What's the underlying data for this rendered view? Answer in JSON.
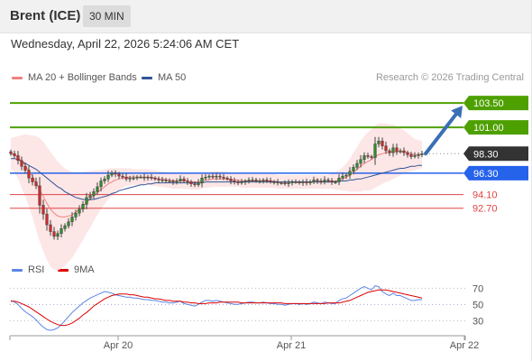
{
  "header": {
    "symbol": "Brent (ICE)",
    "timeframe": "30 MIN"
  },
  "datetime": "Wednesday, April 22, 2026 5:24:06 AM CET",
  "credit": "Research © 2026 Trading Central",
  "colors": {
    "resistance": "#4ea000",
    "pivot": "#2563eb",
    "support": "#e04343",
    "last": "#333333",
    "arrow": "#3a6fb5",
    "ma20": "#f08080",
    "ma50": "#2f5597",
    "bollinger": "#fde3e3",
    "rsi": "#5b86e5",
    "rsi_ma": "#dd0000"
  },
  "chart_data": [
    {
      "type": "candlestick",
      "legend": [
        {
          "name": "MA 20 + Bollinger Bands",
          "color": "#f08080"
        },
        {
          "name": "MA 50",
          "color": "#2f5597"
        }
      ],
      "ylim": [
        88.5,
        105.0
      ],
      "levels": [
        {
          "label": "103.50",
          "value": 103.5,
          "kind": "resistance"
        },
        {
          "label": "101.00",
          "value": 101.0,
          "kind": "resistance"
        },
        {
          "label": "98.30",
          "value": 98.3,
          "kind": "last"
        },
        {
          "label": "96.30",
          "value": 96.3,
          "kind": "pivot"
        },
        {
          "label": "94.10",
          "value": 94.1,
          "kind": "support"
        },
        {
          "label": "92.70",
          "value": 92.7,
          "kind": "support"
        }
      ],
      "x_ticks": [
        {
          "label": "Apr 20",
          "index": 27
        },
        {
          "label": "Apr 21",
          "index": 75
        },
        {
          "label": "Apr 22",
          "index": 123
        }
      ],
      "forecast_arrow": {
        "from": 98.3,
        "to": 103.5
      },
      "closes": [
        98.3,
        98.1,
        97.6,
        97.0,
        96.6,
        95.8,
        95.4,
        95.0,
        93.0,
        92.1,
        91.0,
        90.3,
        89.8,
        90.1,
        90.6,
        90.9,
        91.3,
        91.8,
        92.2,
        92.6,
        93.1,
        93.8,
        94.0,
        94.4,
        94.9,
        95.5,
        95.7,
        96.1,
        96.3,
        96.2,
        96.0,
        95.9,
        95.7,
        95.8,
        95.8,
        95.9,
        95.9,
        95.8,
        95.9,
        95.8,
        95.7,
        95.6,
        95.6,
        95.5,
        95.5,
        95.4,
        95.5,
        95.7,
        95.5,
        95.4,
        95.2,
        95.1,
        95.3,
        95.8,
        95.9,
        96.0,
        95.9,
        96.0,
        95.9,
        95.8,
        95.7,
        95.5,
        95.4,
        95.3,
        95.4,
        95.5,
        95.6,
        95.6,
        95.5,
        95.5,
        95.6,
        95.5,
        95.4,
        95.4,
        95.3,
        95.3,
        95.2,
        95.3,
        95.4,
        95.4,
        95.3,
        95.4,
        95.3,
        95.4,
        95.6,
        95.5,
        95.4,
        95.6,
        95.5,
        95.4,
        95.4,
        95.8,
        96.0,
        96.1,
        96.5,
        96.9,
        97.3,
        97.7,
        98.1,
        98.0,
        97.9,
        99.3,
        99.6,
        99.1,
        98.6,
        98.4,
        98.9,
        98.5,
        98.6,
        98.4,
        98.2,
        98.0,
        98.1,
        98.2,
        98.3
      ],
      "ma20": [
        98.3,
        98.2,
        97.9,
        97.5,
        97.1,
        96.5,
        96.0,
        95.3,
        94.6,
        93.9,
        93.2,
        92.6,
        92.2,
        91.9,
        91.8,
        91.8,
        91.9,
        92.0,
        92.3,
        92.6,
        92.9,
        93.3,
        93.6,
        94.0,
        94.3,
        94.6,
        94.9,
        95.2,
        95.4,
        95.6,
        95.7,
        95.8,
        95.9,
        95.9,
        95.9,
        95.9,
        95.9,
        95.9,
        95.9,
        95.8,
        95.8,
        95.7,
        95.7,
        95.6,
        95.6,
        95.5,
        95.5,
        95.5,
        95.5,
        95.5,
        95.4,
        95.4,
        95.4,
        95.5,
        95.6,
        95.6,
        95.7,
        95.7,
        95.7,
        95.7,
        95.7,
        95.6,
        95.6,
        95.6,
        95.5,
        95.5,
        95.5,
        95.5,
        95.5,
        95.5,
        95.5,
        95.5,
        95.5,
        95.5,
        95.4,
        95.4,
        95.4,
        95.4,
        95.4,
        95.4,
        95.4,
        95.4,
        95.4,
        95.4,
        95.4,
        95.4,
        95.4,
        95.4,
        95.4,
        95.5,
        95.5,
        95.6,
        95.7,
        95.9,
        96.1,
        96.4,
        96.7,
        97.0,
        97.3,
        97.5,
        97.7,
        98.0,
        98.2,
        98.3,
        98.4,
        98.4,
        98.5,
        98.5,
        98.5,
        98.5,
        98.4,
        98.3,
        98.2,
        98.2,
        98.2
      ],
      "ma50": [
        97.8,
        97.8,
        97.7,
        97.5,
        97.3,
        97.1,
        96.9,
        96.7,
        96.4,
        96.1,
        95.8,
        95.5,
        95.2,
        94.9,
        94.7,
        94.4,
        94.2,
        94.0,
        93.8,
        93.7,
        93.6,
        93.6,
        93.6,
        93.6,
        93.7,
        93.8,
        93.9,
        94.0,
        94.2,
        94.3,
        94.5,
        94.6,
        94.7,
        94.8,
        94.9,
        95.0,
        95.1,
        95.1,
        95.2,
        95.2,
        95.3,
        95.3,
        95.3,
        95.3,
        95.3,
        95.3,
        95.3,
        95.3,
        95.3,
        95.3,
        95.3,
        95.3,
        95.3,
        95.3,
        95.4,
        95.4,
        95.4,
        95.4,
        95.4,
        95.4,
        95.4,
        95.4,
        95.4,
        95.4,
        95.4,
        95.4,
        95.4,
        95.4,
        95.4,
        95.4,
        95.4,
        95.4,
        95.4,
        95.4,
        95.4,
        95.4,
        95.4,
        95.4,
        95.4,
        95.4,
        95.4,
        95.4,
        95.4,
        95.4,
        95.4,
        95.4,
        95.4,
        95.4,
        95.4,
        95.4,
        95.4,
        95.5,
        95.5,
        95.5,
        95.6,
        95.6,
        95.7,
        95.7,
        95.8,
        95.9,
        96.0,
        96.1,
        96.2,
        96.3,
        96.4,
        96.5,
        96.6,
        96.7,
        96.8,
        96.8,
        96.9,
        97.0,
        97.0,
        97.1,
        97.1
      ],
      "bb_width": [
        1.6,
        1.8,
        2.2,
        2.7,
        3.2,
        3.7,
        4.2,
        4.8,
        5.3,
        5.6,
        5.8,
        5.9,
        5.8,
        5.6,
        5.3,
        5.0,
        4.7,
        4.4,
        4.1,
        3.8,
        3.5,
        3.2,
        2.9,
        2.6,
        2.3,
        2.0,
        1.8,
        1.6,
        1.4,
        1.2,
        1.1,
        1.0,
        0.9,
        0.9,
        0.8,
        0.8,
        0.8,
        0.8,
        0.8,
        0.8,
        0.8,
        0.8,
        0.8,
        0.8,
        0.8,
        0.8,
        0.8,
        0.8,
        0.8,
        0.8,
        0.8,
        0.8,
        0.8,
        0.8,
        0.8,
        0.8,
        0.8,
        0.8,
        0.8,
        0.8,
        0.8,
        0.7,
        0.7,
        0.7,
        0.7,
        0.7,
        0.7,
        0.7,
        0.7,
        0.7,
        0.7,
        0.7,
        0.7,
        0.7,
        0.7,
        0.7,
        0.7,
        0.7,
        0.7,
        0.7,
        0.7,
        0.7,
        0.7,
        0.7,
        0.7,
        0.7,
        0.7,
        0.7,
        0.7,
        0.8,
        0.9,
        1.0,
        1.2,
        1.4,
        1.7,
        2.0,
        2.3,
        2.6,
        2.8,
        3.0,
        3.1,
        3.2,
        3.2,
        3.1,
        3.0,
        2.9,
        2.8,
        2.6,
        2.4,
        2.2,
        2.0,
        1.8,
        1.6,
        1.5,
        1.4
      ]
    },
    {
      "type": "line",
      "legend": [
        {
          "name": "RSI",
          "color": "#5b86e5"
        },
        {
          "name": "9MA",
          "color": "#dd0000"
        }
      ],
      "ylim": [
        18,
        85
      ],
      "ticks": [
        70,
        50,
        30
      ],
      "rsi": [
        55,
        53,
        50,
        45,
        41,
        38,
        35,
        31,
        26,
        22,
        19,
        18,
        19,
        21,
        25,
        30,
        35,
        40,
        44,
        48,
        52,
        55,
        58,
        60,
        62,
        64,
        66,
        65,
        64,
        62,
        61,
        60,
        59,
        59,
        58,
        58,
        57,
        56,
        56,
        55,
        55,
        54,
        53,
        53,
        52,
        52,
        53,
        54,
        51,
        50,
        49,
        48,
        50,
        53,
        55,
        55,
        54,
        55,
        54,
        53,
        52,
        51,
        50,
        50,
        51,
        52,
        53,
        53,
        52,
        52,
        53,
        52,
        51,
        51,
        50,
        50,
        49,
        50,
        51,
        51,
        50,
        51,
        50,
        51,
        53,
        52,
        51,
        53,
        52,
        51,
        51,
        55,
        57,
        58,
        61,
        64,
        67,
        70,
        72,
        70,
        68,
        73,
        72,
        66,
        63,
        61,
        64,
        61,
        61,
        59,
        57,
        55,
        55,
        56,
        56
      ],
      "rsi_ma": [
        54,
        54,
        53,
        51,
        49,
        47,
        44,
        41,
        38,
        35,
        32,
        29,
        27,
        25,
        24,
        24,
        25,
        27,
        30,
        33,
        37,
        40,
        44,
        48,
        51,
        54,
        57,
        59,
        61,
        62,
        63,
        63,
        63,
        62,
        62,
        61,
        60,
        59,
        59,
        58,
        57,
        57,
        56,
        55,
        55,
        54,
        54,
        54,
        53,
        53,
        52,
        52,
        51,
        51,
        51,
        52,
        52,
        52,
        53,
        53,
        53,
        53,
        53,
        53,
        52,
        52,
        52,
        52,
        52,
        52,
        52,
        52,
        52,
        52,
        52,
        52,
        51,
        51,
        51,
        51,
        51,
        51,
        51,
        51,
        51,
        51,
        51,
        51,
        52,
        52,
        52,
        52,
        53,
        54,
        55,
        57,
        59,
        61,
        63,
        65,
        66,
        67,
        68,
        68,
        68,
        67,
        66,
        65,
        64,
        63,
        62,
        61,
        60,
        59,
        58
      ]
    }
  ]
}
